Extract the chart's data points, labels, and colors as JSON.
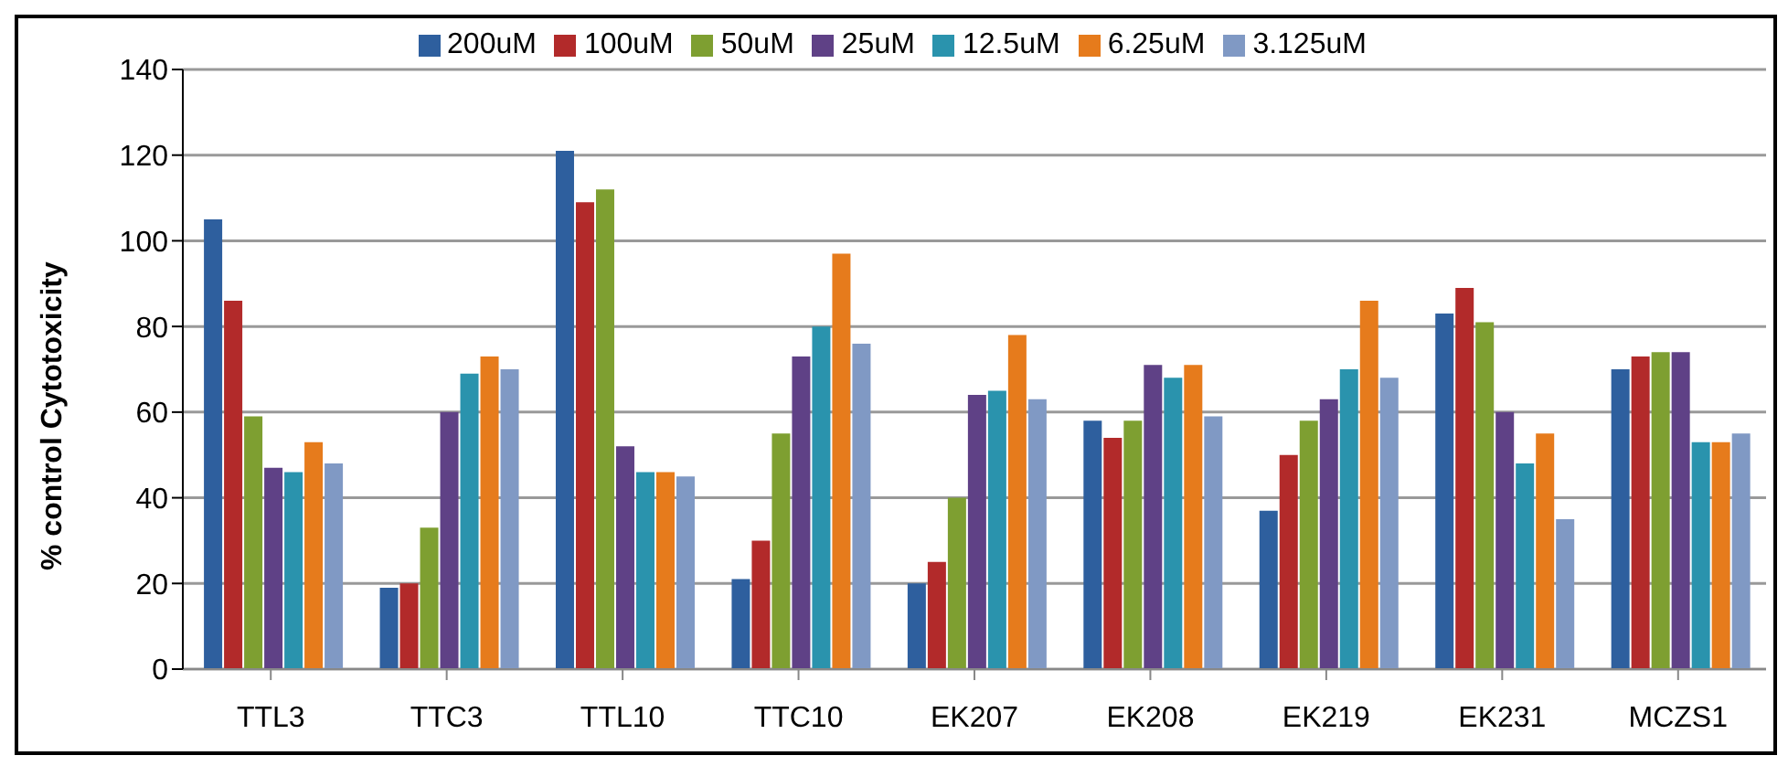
{
  "chart_data": {
    "type": "bar",
    "ylabel": "% control  Cytotoxicity",
    "categories": [
      "TTL3",
      "TTC3",
      "TTL10",
      "TTC10",
      "EK207",
      "EK208",
      "EK219",
      "EK231",
      "MCZS1"
    ],
    "series": [
      {
        "name": "200uM",
        "color": "#2e5f9e",
        "values": [
          105,
          19,
          121,
          21,
          20,
          58,
          37,
          83,
          70
        ]
      },
      {
        "name": "100uM",
        "color": "#b22a2a",
        "values": [
          86,
          20,
          109,
          30,
          25,
          54,
          50,
          89,
          73
        ]
      },
      {
        "name": "50uM",
        "color": "#7e9f31",
        "values": [
          59,
          33,
          112,
          55,
          40,
          58,
          58,
          81,
          74
        ]
      },
      {
        "name": "25uM",
        "color": "#5f4186",
        "values": [
          47,
          60,
          52,
          73,
          64,
          71,
          63,
          60,
          74
        ]
      },
      {
        "name": "12.5uM",
        "color": "#2a93ad",
        "values": [
          46,
          69,
          46,
          80,
          65,
          68,
          70,
          48,
          53
        ]
      },
      {
        "name": "6.25uM",
        "color": "#e67b1c",
        "values": [
          53,
          73,
          46,
          97,
          78,
          71,
          86,
          55,
          53
        ]
      },
      {
        "name": "3.125uM",
        "color": "#8099c4",
        "values": [
          48,
          70,
          45,
          76,
          63,
          59,
          68,
          35,
          55
        ]
      }
    ],
    "ylim": [
      0,
      140
    ],
    "yticks": [
      0,
      20,
      40,
      60,
      80,
      100,
      120,
      140
    ],
    "grid": "y",
    "legend": "top"
  }
}
